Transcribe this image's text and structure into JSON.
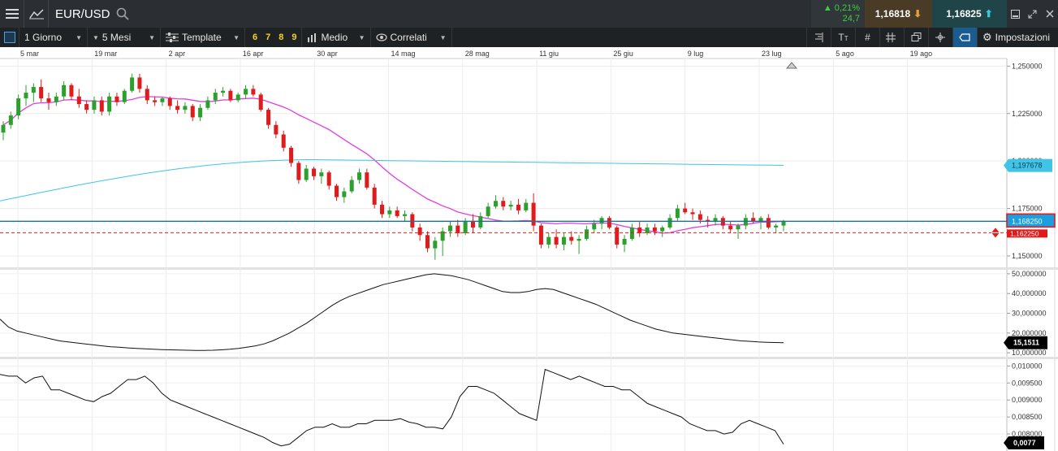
{
  "header": {
    "symbol": "EUR/USD",
    "change_pct": "0,21%",
    "change_pts": "24,7",
    "bid": "1,16818",
    "ask": "1,16825",
    "colors": {
      "up": "#3ecf3e",
      "bid_arrow": "#e0a040",
      "ask_arrow": "#3dc8d8"
    }
  },
  "toolbar": {
    "interval": "1 Giorno",
    "range": "5 Mesi",
    "template_label": "Template",
    "numbers": [
      "6",
      "7",
      "8",
      "9"
    ],
    "medio_label": "Medio",
    "correlati_label": "Correlati",
    "settings_label": "Impostazioni"
  },
  "chart_data": {
    "type": "candlestick",
    "x_ticks": [
      "5 mar",
      "19 mar",
      "2 apr",
      "16 apr",
      "30 apr",
      "14 mag",
      "28 mag",
      "11 giu",
      "25 giu",
      "9 lug",
      "23 lug",
      "5 ago",
      "19 ago"
    ],
    "y_ticks": [
      "1,250000",
      "1,225000",
      "1,200000",
      "1,175000",
      "1,150000"
    ],
    "ylim": [
      1.144,
      1.254
    ],
    "moving_averages": {
      "ma_magenta_color": "#e13ee0",
      "ma_cyan_color": "#3fc4e6",
      "ma_cyan_last": "1,197678"
    },
    "price_line": {
      "value": "1,168250",
      "color": "#1b6fa5"
    },
    "dashed_line": {
      "value": "1,162250",
      "color": "#e02020"
    },
    "candle_colors": {
      "up": "#2ca02c",
      "down": "#e01b1b"
    },
    "candles": [
      [
        1.215,
        1.221,
        1.211,
        1.219
      ],
      [
        1.219,
        1.226,
        1.217,
        1.224
      ],
      [
        1.224,
        1.235,
        1.222,
        1.233
      ],
      [
        1.233,
        1.24,
        1.229,
        1.236
      ],
      [
        1.236,
        1.241,
        1.231,
        1.239
      ],
      [
        1.239,
        1.243,
        1.231,
        1.233
      ],
      [
        1.233,
        1.236,
        1.227,
        1.231
      ],
      [
        1.231,
        1.236,
        1.229,
        1.234
      ],
      [
        1.234,
        1.242,
        1.232,
        1.24
      ],
      [
        1.24,
        1.241,
        1.232,
        1.234
      ],
      [
        1.234,
        1.238,
        1.228,
        1.23
      ],
      [
        1.23,
        1.232,
        1.225,
        1.227
      ],
      [
        1.227,
        1.234,
        1.225,
        1.232
      ],
      [
        1.232,
        1.234,
        1.224,
        1.226
      ],
      [
        1.226,
        1.236,
        1.224,
        1.234
      ],
      [
        1.234,
        1.236,
        1.229,
        1.231
      ],
      [
        1.231,
        1.238,
        1.23,
        1.237
      ],
      [
        1.237,
        1.246,
        1.236,
        1.244
      ],
      [
        1.244,
        1.246,
        1.236,
        1.238
      ],
      [
        1.238,
        1.24,
        1.23,
        1.232
      ],
      [
        1.232,
        1.234,
        1.229,
        1.231
      ],
      [
        1.231,
        1.234,
        1.229,
        1.233
      ],
      [
        1.233,
        1.234,
        1.227,
        1.229
      ],
      [
        1.229,
        1.232,
        1.225,
        1.227
      ],
      [
        1.227,
        1.231,
        1.225,
        1.229
      ],
      [
        1.229,
        1.23,
        1.221,
        1.223
      ],
      [
        1.223,
        1.23,
        1.221,
        1.228
      ],
      [
        1.228,
        1.234,
        1.227,
        1.232
      ],
      [
        1.232,
        1.238,
        1.23,
        1.236
      ],
      [
        1.236,
        1.239,
        1.234,
        1.237
      ],
      [
        1.237,
        1.238,
        1.231,
        1.232
      ],
      [
        1.232,
        1.236,
        1.231,
        1.235
      ],
      [
        1.235,
        1.24,
        1.233,
        1.238
      ],
      [
        1.238,
        1.24,
        1.234,
        1.235
      ],
      [
        1.235,
        1.236,
        1.226,
        1.227
      ],
      [
        1.227,
        1.228,
        1.217,
        1.219
      ],
      [
        1.219,
        1.221,
        1.212,
        1.214
      ],
      [
        1.214,
        1.216,
        1.205,
        1.207
      ],
      [
        1.207,
        1.208,
        1.197,
        1.199
      ],
      [
        1.199,
        1.2,
        1.188,
        1.19
      ],
      [
        1.19,
        1.198,
        1.189,
        1.196
      ],
      [
        1.196,
        1.197,
        1.19,
        1.192
      ],
      [
        1.192,
        1.196,
        1.188,
        1.194
      ],
      [
        1.194,
        1.195,
        1.185,
        1.187
      ],
      [
        1.187,
        1.188,
        1.179,
        1.181
      ],
      [
        1.181,
        1.186,
        1.178,
        1.184
      ],
      [
        1.184,
        1.192,
        1.183,
        1.19
      ],
      [
        1.19,
        1.196,
        1.188,
        1.194
      ],
      [
        1.194,
        1.196,
        1.185,
        1.186
      ],
      [
        1.186,
        1.188,
        1.175,
        1.177
      ],
      [
        1.177,
        1.179,
        1.17,
        1.172
      ],
      [
        1.172,
        1.176,
        1.17,
        1.174
      ],
      [
        1.174,
        1.176,
        1.17,
        1.171
      ],
      [
        1.171,
        1.174,
        1.168,
        1.172
      ],
      [
        1.172,
        1.173,
        1.163,
        1.165
      ],
      [
        1.165,
        1.167,
        1.158,
        1.161
      ],
      [
        1.161,
        1.163,
        1.152,
        1.154
      ],
      [
        1.154,
        1.16,
        1.148,
        1.158
      ],
      [
        1.158,
        1.165,
        1.15,
        1.163
      ],
      [
        1.163,
        1.168,
        1.16,
        1.166
      ],
      [
        1.166,
        1.169,
        1.16,
        1.162
      ],
      [
        1.162,
        1.17,
        1.161,
        1.168
      ],
      [
        1.168,
        1.172,
        1.162,
        1.165
      ],
      [
        1.165,
        1.173,
        1.164,
        1.171
      ],
      [
        1.171,
        1.178,
        1.17,
        1.176
      ],
      [
        1.176,
        1.182,
        1.175,
        1.179
      ],
      [
        1.179,
        1.181,
        1.174,
        1.176
      ],
      [
        1.176,
        1.179,
        1.174,
        1.177
      ],
      [
        1.177,
        1.18,
        1.172,
        1.174
      ],
      [
        1.174,
        1.18,
        1.173,
        1.178
      ],
      [
        1.178,
        1.183,
        1.163,
        1.166
      ],
      [
        1.166,
        1.167,
        1.154,
        1.156
      ],
      [
        1.156,
        1.162,
        1.154,
        1.16
      ],
      [
        1.16,
        1.164,
        1.154,
        1.156
      ],
      [
        1.156,
        1.162,
        1.153,
        1.16
      ],
      [
        1.16,
        1.163,
        1.156,
        1.158
      ],
      [
        1.158,
        1.161,
        1.151,
        1.159
      ],
      [
        1.159,
        1.166,
        1.158,
        1.164
      ],
      [
        1.164,
        1.169,
        1.162,
        1.167
      ],
      [
        1.167,
        1.171,
        1.164,
        1.17
      ],
      [
        1.17,
        1.171,
        1.164,
        1.165
      ],
      [
        1.165,
        1.166,
        1.154,
        1.156
      ],
      [
        1.156,
        1.161,
        1.152,
        1.159
      ],
      [
        1.159,
        1.167,
        1.158,
        1.165
      ],
      [
        1.165,
        1.168,
        1.16,
        1.162
      ],
      [
        1.162,
        1.167,
        1.161,
        1.165
      ],
      [
        1.165,
        1.167,
        1.161,
        1.163
      ],
      [
        1.163,
        1.166,
        1.16,
        1.165
      ],
      [
        1.165,
        1.172,
        1.164,
        1.17
      ],
      [
        1.17,
        1.177,
        1.168,
        1.175
      ],
      [
        1.175,
        1.178,
        1.172,
        1.173
      ],
      [
        1.173,
        1.175,
        1.169,
        1.172
      ],
      [
        1.172,
        1.174,
        1.167,
        1.169
      ],
      [
        1.169,
        1.171,
        1.165,
        1.168
      ],
      [
        1.168,
        1.172,
        1.166,
        1.17
      ],
      [
        1.17,
        1.171,
        1.164,
        1.166
      ],
      [
        1.166,
        1.168,
        1.162,
        1.164
      ],
      [
        1.164,
        1.167,
        1.159,
        1.166
      ],
      [
        1.166,
        1.172,
        1.164,
        1.17
      ],
      [
        1.17,
        1.173,
        1.167,
        1.168
      ],
      [
        1.168,
        1.171,
        1.164,
        1.17
      ],
      [
        1.17,
        1.172,
        1.164,
        1.165
      ],
      [
        1.165,
        1.167,
        1.162,
        1.166
      ],
      [
        1.166,
        1.169,
        1.163,
        1.168
      ]
    ],
    "indicator1": {
      "y_ticks": [
        "50,000000",
        "40,000000",
        "30,000000",
        "20,000000",
        "10,000000"
      ],
      "ylim": [
        8,
        52
      ],
      "last_value": "15,1511",
      "values": [
        27,
        23,
        21,
        20,
        19,
        18,
        17,
        16,
        15.5,
        15,
        14.5,
        14,
        13.5,
        13,
        12.8,
        12.5,
        12.2,
        12,
        11.8,
        11.6,
        11.5,
        11.4,
        11.3,
        11.2,
        11.2,
        11.3,
        11.5,
        11.8,
        12.2,
        12.8,
        13.5,
        14.5,
        16,
        18,
        20,
        22.5,
        25,
        28,
        31,
        34,
        36.5,
        38.5,
        40,
        41.5,
        43,
        44.5,
        45.5,
        46.5,
        47.5,
        48.5,
        49.5,
        50,
        49.5,
        49,
        48,
        47,
        45.5,
        44,
        42.5,
        41,
        40.5,
        40.5,
        41,
        42,
        42.5,
        42,
        40.5,
        39,
        37.5,
        36,
        34.5,
        32.5,
        30.5,
        28.5,
        26.5,
        25,
        23.5,
        22,
        21,
        20,
        19.5,
        19,
        18.5,
        18,
        17.5,
        17,
        16.5,
        16,
        15.8,
        15.5,
        15.3,
        15.2,
        15.1
      ]
    },
    "indicator2": {
      "y_ticks": [
        "0,010000",
        "0,009500",
        "0,009000",
        "0,008500",
        "0,008000"
      ],
      "ylim": [
        0.0075,
        0.0102
      ],
      "last_value": "0,0077",
      "values": [
        0.00975,
        0.0097,
        0.0097,
        0.0095,
        0.00965,
        0.0097,
        0.0093,
        0.0093,
        0.0092,
        0.0091,
        0.009,
        0.00895,
        0.0091,
        0.0092,
        0.0094,
        0.0096,
        0.0096,
        0.0097,
        0.0095,
        0.0092,
        0.009,
        0.0089,
        0.0088,
        0.0087,
        0.0086,
        0.0085,
        0.0084,
        0.0083,
        0.0082,
        0.0081,
        0.008,
        0.0079,
        0.00775,
        0.00765,
        0.0077,
        0.0079,
        0.0081,
        0.0082,
        0.0082,
        0.0083,
        0.0082,
        0.0082,
        0.0083,
        0.0083,
        0.0084,
        0.0084,
        0.0084,
        0.00845,
        0.00835,
        0.0083,
        0.0082,
        0.0082,
        0.00815,
        0.0085,
        0.0091,
        0.0094,
        0.0094,
        0.0093,
        0.0092,
        0.009,
        0.0088,
        0.0086,
        0.0085,
        0.0084,
        0.0099,
        0.0098,
        0.0097,
        0.0096,
        0.0097,
        0.0096,
        0.0095,
        0.0094,
        0.0094,
        0.0093,
        0.0093,
        0.0091,
        0.0089,
        0.0088,
        0.0087,
        0.0086,
        0.0085,
        0.0083,
        0.0082,
        0.0081,
        0.0081,
        0.008,
        0.00805,
        0.0083,
        0.0084,
        0.0083,
        0.0082,
        0.0081,
        0.0077
      ]
    }
  }
}
